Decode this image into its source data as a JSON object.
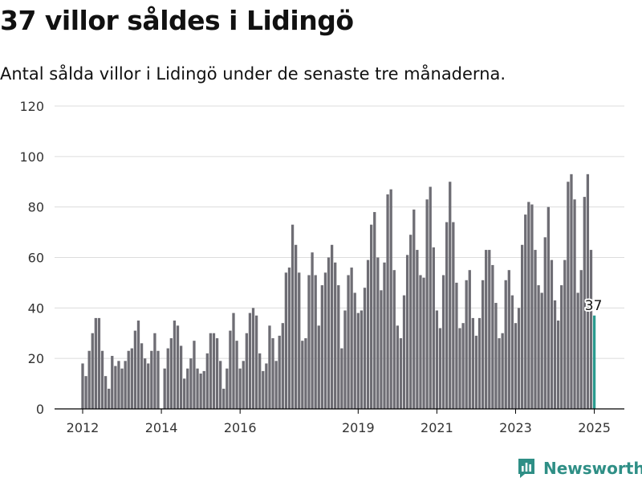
{
  "header": {
    "title": "37 villor såldes i Lidingö",
    "subtitle": "Antal sålda villor i Lidingö under de senaste tre månaderna."
  },
  "brand": {
    "name": "Newsworthy"
  },
  "colors": {
    "bar": "#6e6d74",
    "highlight": "#2a9b8f",
    "grid": "#dcdcdc",
    "axis": "#000000",
    "brand": "#2f8f86"
  },
  "chart_data": {
    "type": "bar",
    "title": "",
    "xlabel": "",
    "ylabel": "",
    "ylim": [
      0,
      120
    ],
    "yticks": [
      0,
      20,
      40,
      60,
      80,
      100,
      120
    ],
    "xticks": [
      "2012",
      "2014",
      "2016",
      "2019",
      "2021",
      "2023",
      "2025"
    ],
    "grid": true,
    "start_month": "2012-01",
    "values": [
      18,
      13,
      23,
      30,
      36,
      36,
      23,
      13,
      8,
      21,
      17,
      19,
      16,
      19,
      23,
      24,
      31,
      35,
      26,
      20,
      18,
      23,
      30,
      23,
      0,
      16,
      24,
      28,
      35,
      33,
      25,
      12,
      16,
      20,
      27,
      16,
      14,
      15,
      22,
      30,
      30,
      28,
      19,
      8,
      16,
      31,
      38,
      27,
      16,
      19,
      30,
      38,
      40,
      37,
      22,
      15,
      18,
      33,
      28,
      19,
      29,
      34,
      54,
      56,
      73,
      65,
      54,
      27,
      28,
      53,
      62,
      53,
      33,
      49,
      54,
      60,
      65,
      58,
      49,
      24,
      39,
      53,
      56,
      46,
      38,
      39,
      48,
      59,
      73,
      78,
      60,
      47,
      58,
      85,
      87,
      55,
      33,
      28,
      45,
      61,
      69,
      79,
      63,
      53,
      52,
      83,
      88,
      64,
      39,
      32,
      53,
      74,
      90,
      74,
      50,
      32,
      34,
      51,
      55,
      36,
      29,
      36,
      51,
      63,
      63,
      57,
      42,
      28,
      30,
      51,
      55,
      45,
      34,
      40,
      65,
      77,
      82,
      81,
      63,
      49,
      46,
      68,
      80,
      59,
      43,
      35,
      49,
      59,
      90,
      93,
      83,
      46,
      55,
      84,
      93,
      63,
      37
    ],
    "highlight": {
      "label": "37"
    }
  }
}
